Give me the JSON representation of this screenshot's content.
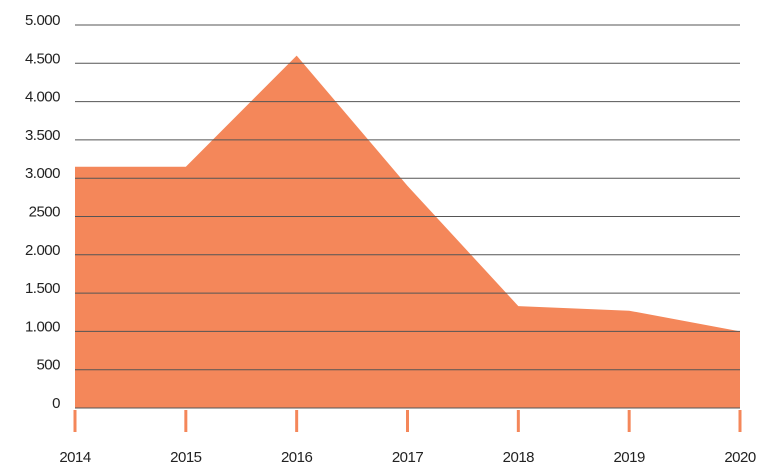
{
  "chart_data": {
    "type": "area",
    "categories": [
      "2014",
      "2015",
      "2016",
      "2017",
      "2018",
      "2019",
      "2020"
    ],
    "values": [
      3150,
      3150,
      4600,
      2900,
      1330,
      1270,
      1000
    ],
    "color": "#f4875a",
    "ylim": [
      0,
      5000
    ],
    "yticks": [
      0,
      500,
      {
        "value": 1000,
        "label": "1.000"
      },
      {
        "value": 1500,
        "label": "1.500"
      },
      {
        "value": 2000,
        "label": "2.000"
      },
      2500,
      {
        "value": 3000,
        "label": "3.000"
      },
      {
        "value": 3500,
        "label": "3.500"
      },
      {
        "value": 4000,
        "label": "4.000"
      },
      {
        "value": 4500,
        "label": "4.500"
      },
      {
        "value": 5000,
        "label": "5.000"
      }
    ],
    "grid": true
  }
}
